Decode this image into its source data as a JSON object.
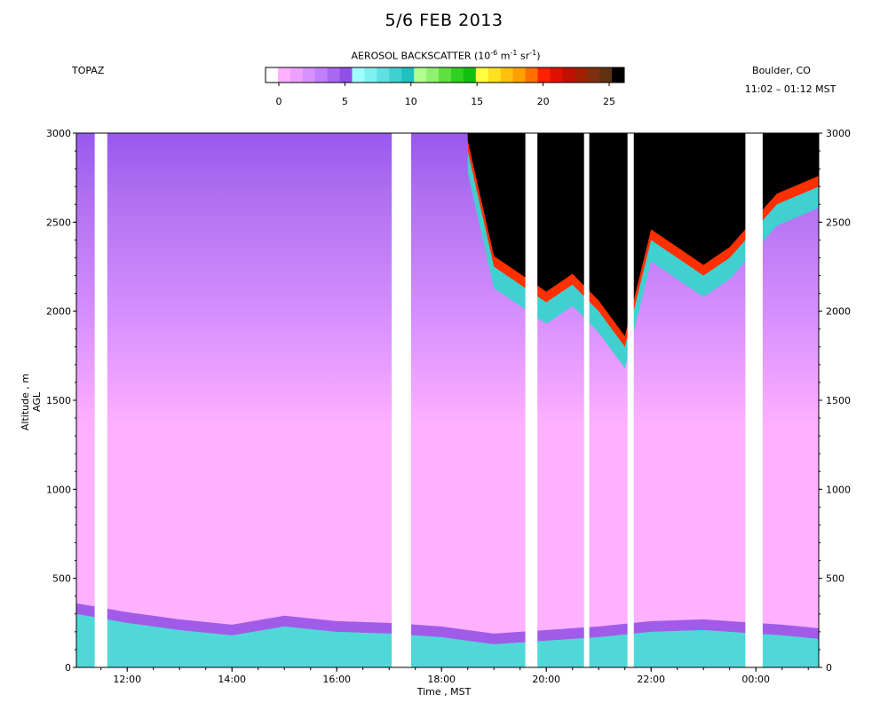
{
  "title": "5/6 FEB 2013",
  "site": "TOPAZ",
  "location": "Boulder, CO",
  "time_range": "11:02 – 01:12 MST",
  "colorbar": {
    "title_prefix": "AEROSOL BACKSCATTER (10",
    "title_exp1": "-6",
    "title_mid1": " m",
    "title_exp2": "-1",
    "title_mid2": " sr",
    "title_exp3": "-1",
    "title_suffix": ")",
    "ticks": [
      "0",
      "5",
      "10",
      "15",
      "20",
      "25"
    ],
    "colors": [
      "#ffffff",
      "#ffb0ff",
      "#eea0ff",
      "#d890ff",
      "#c080ff",
      "#a868f0",
      "#9050e8",
      "#a0ffff",
      "#80f0f0",
      "#60e0e0",
      "#40d0d0",
      "#20c0c0",
      "#b0ff90",
      "#90f070",
      "#60e040",
      "#30d020",
      "#10c010",
      "#ffff40",
      "#ffe020",
      "#ffc010",
      "#ffa000",
      "#ff7000",
      "#ff2000",
      "#e01000",
      "#c01000",
      "#a02000",
      "#803010",
      "#603010",
      "#000000"
    ]
  },
  "colors": {
    "bg_pink": "#ffb0ff",
    "mid_lavender": "#d890ff",
    "upper_purple": "#b070f0",
    "top_purple": "#9858f0",
    "boundary_purple": "#8040e0",
    "surface_cyan": "#50d8d8",
    "gap": "#ffffff",
    "cloud": "#000000"
  },
  "chart_data": {
    "type": "heatmap",
    "title": "5/6 FEB 2013",
    "xlabel": "Time , MST",
    "ylabel": "Altitude , m AGL",
    "x_range_hours": [
      11.03,
      25.2
    ],
    "ylim": [
      0,
      3000
    ],
    "x_ticks": [
      {
        "h": 12,
        "label": "12:00"
      },
      {
        "h": 14,
        "label": "14:00"
      },
      {
        "h": 16,
        "label": "16:00"
      },
      {
        "h": 18,
        "label": "18:00"
      },
      {
        "h": 20,
        "label": "20:00"
      },
      {
        "h": 22,
        "label": "22:00"
      },
      {
        "h": 24,
        "label": "00:00"
      }
    ],
    "y_ticks": [
      0,
      500,
      1000,
      1500,
      2000,
      2500,
      3000
    ],
    "colorbar_range": [
      0,
      25
    ],
    "colorbar_units": "10^-6 m^-1 sr^-1",
    "data_gaps_hours": [
      [
        11.38,
        11.62
      ],
      [
        17.05,
        17.42
      ],
      [
        19.6,
        19.83
      ],
      [
        20.72,
        20.82
      ],
      [
        21.55,
        21.67
      ],
      [
        23.8,
        24.13
      ]
    ],
    "boundary_layer_top_m": [
      {
        "h": 11.03,
        "m": 300
      },
      {
        "h": 12.0,
        "m": 250
      },
      {
        "h": 13.0,
        "m": 210
      },
      {
        "h": 14.0,
        "m": 180
      },
      {
        "h": 15.0,
        "m": 230
      },
      {
        "h": 16.0,
        "m": 200
      },
      {
        "h": 17.0,
        "m": 190
      },
      {
        "h": 18.0,
        "m": 170
      },
      {
        "h": 19.0,
        "m": 130
      },
      {
        "h": 20.0,
        "m": 150
      },
      {
        "h": 21.0,
        "m": 170
      },
      {
        "h": 22.0,
        "m": 200
      },
      {
        "h": 23.0,
        "m": 210
      },
      {
        "h": 24.5,
        "m": 180
      },
      {
        "h": 25.2,
        "m": 160
      }
    ],
    "cloud_base_m": [
      {
        "h": 18.5,
        "m": 2900
      },
      {
        "h": 19.0,
        "m": 2250
      },
      {
        "h": 19.5,
        "m": 2150
      },
      {
        "h": 20.0,
        "m": 2050
      },
      {
        "h": 20.5,
        "m": 2150
      },
      {
        "h": 21.0,
        "m": 2000
      },
      {
        "h": 21.5,
        "m": 1800
      },
      {
        "h": 22.0,
        "m": 2400
      },
      {
        "h": 22.5,
        "m": 2300
      },
      {
        "h": 23.0,
        "m": 2200
      },
      {
        "h": 23.5,
        "m": 2300
      },
      {
        "h": 24.4,
        "m": 2600
      },
      {
        "h": 25.2,
        "m": 2700
      }
    ]
  }
}
